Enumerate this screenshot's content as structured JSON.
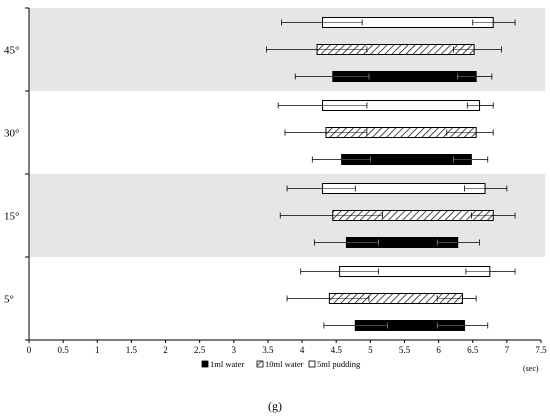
{
  "chart_data": {
    "type": "bar",
    "orientation": "horizontal",
    "style": "floating-range-with-error-bars",
    "categories": [
      "45°",
      "30°",
      "15°",
      "5°"
    ],
    "shaded_categories": [
      "45°",
      "15°"
    ],
    "xlim": [
      0,
      7.5
    ],
    "xticks": [
      "0",
      "0.5",
      "1",
      "1.5",
      "2",
      "2.5",
      "3",
      "3.5",
      "4",
      "4.5",
      "5",
      "5.5",
      "6",
      "6.5",
      "7",
      "7.5"
    ],
    "xunit": "(sec)",
    "panel_label": "(g)",
    "series": [
      {
        "name": "5ml pudding",
        "pattern": "white",
        "ranges": [
          {
            "category": "45°",
            "start": 4.3,
            "end": 6.8,
            "err_low": 3.7,
            "mid_cap_low": 4.88,
            "mid_cap_high": 6.5,
            "err_high": 7.12
          },
          {
            "category": "30°",
            "start": 4.3,
            "end": 6.6,
            "err_low": 3.65,
            "mid_cap_low": 4.95,
            "mid_cap_high": 6.42,
            "err_high": 6.8
          },
          {
            "category": "15°",
            "start": 4.3,
            "end": 6.68,
            "err_low": 3.78,
            "mid_cap_low": 4.78,
            "mid_cap_high": 6.38,
            "err_high": 7.0
          },
          {
            "category": "5°",
            "start": 4.55,
            "end": 6.75,
            "err_low": 3.98,
            "mid_cap_low": 5.12,
            "mid_cap_high": 6.4,
            "err_high": 7.12
          }
        ]
      },
      {
        "name": "10ml water",
        "pattern": "hatched",
        "ranges": [
          {
            "category": "45°",
            "start": 4.22,
            "end": 6.52,
            "err_low": 3.48,
            "mid_cap_low": 4.95,
            "mid_cap_high": 6.22,
            "err_high": 6.92
          },
          {
            "category": "30°",
            "start": 4.35,
            "end": 6.55,
            "err_low": 3.75,
            "mid_cap_low": 4.95,
            "mid_cap_high": 6.12,
            "err_high": 6.8
          },
          {
            "category": "15°",
            "start": 4.45,
            "end": 6.8,
            "err_low": 3.68,
            "mid_cap_low": 5.18,
            "mid_cap_high": 6.48,
            "err_high": 7.12
          },
          {
            "category": "5°",
            "start": 4.4,
            "end": 6.35,
            "err_low": 3.78,
            "mid_cap_low": 4.98,
            "mid_cap_high": 5.98,
            "err_high": 6.55
          }
        ]
      },
      {
        "name": "1ml water",
        "pattern": "black",
        "ranges": [
          {
            "category": "45°",
            "start": 4.45,
            "end": 6.55,
            "err_low": 3.9,
            "mid_cap_low": 4.98,
            "mid_cap_high": 6.28,
            "err_high": 6.78
          },
          {
            "category": "30°",
            "start": 4.58,
            "end": 6.48,
            "err_low": 4.15,
            "mid_cap_low": 5.0,
            "mid_cap_high": 6.22,
            "err_high": 6.72
          },
          {
            "category": "15°",
            "start": 4.65,
            "end": 6.28,
            "err_low": 4.18,
            "mid_cap_low": 5.12,
            "mid_cap_high": 5.98,
            "err_high": 6.6
          },
          {
            "category": "5°",
            "start": 4.78,
            "end": 6.38,
            "err_low": 4.32,
            "mid_cap_low": 5.25,
            "mid_cap_high": 5.98,
            "err_high": 6.72
          }
        ]
      }
    ],
    "legend": {
      "placement": "bottom-center",
      "items": [
        {
          "label": "1ml water",
          "pattern": "black"
        },
        {
          "label": "10ml water",
          "pattern": "hatched"
        },
        {
          "label": "5ml pudding",
          "pattern": "white"
        }
      ]
    },
    "colors": {
      "shade": "#e6e6e6",
      "fill_black": "#000000",
      "fill_white": "#ffffff",
      "stroke": "#000000"
    }
  }
}
